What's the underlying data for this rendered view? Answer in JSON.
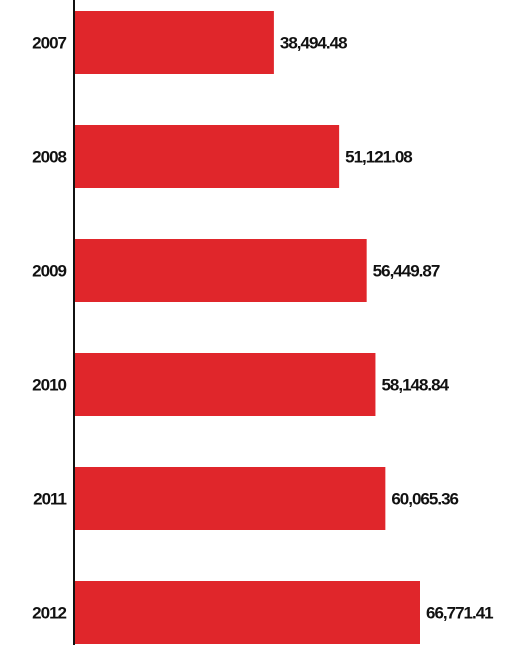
{
  "chart_data": {
    "type": "bar",
    "orientation": "horizontal",
    "categories": [
      "2007",
      "2008",
      "2009",
      "2010",
      "2011",
      "2012"
    ],
    "values": [
      38494.48,
      51121.08,
      56449.87,
      58148.84,
      60065.36,
      66771.41
    ],
    "data_labels": [
      "38,494.48",
      "51,121.08",
      "56,449.87",
      "58,148.84",
      "60,065.36",
      "66,771.41"
    ],
    "title": "",
    "xlabel": "",
    "ylabel": "",
    "xlim": [
      0,
      66771.41
    ],
    "grid": false,
    "legend": "none",
    "bar_color": "#e0262b",
    "axis_color": "#111111"
  }
}
